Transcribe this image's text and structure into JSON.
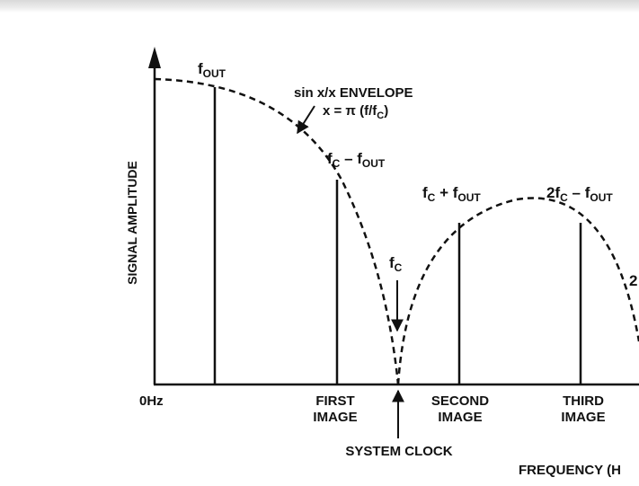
{
  "diagram": {
    "y_axis_label": "SIGNAL AMPLITUDE",
    "x_axis_label": "FREQUENCY (H",
    "origin_label": "0Hz",
    "envelope_label_line1": "sin x/x ENVELOPE",
    "envelope_label_line2": "x = π (f/f",
    "envelope_label_line2_sub": "C",
    "envelope_label_line2_end": ")",
    "fout": {
      "main": "f",
      "sub": "OUT"
    },
    "fc_minus_fout": {
      "a": "f",
      "a_sub": "C",
      "op": " – f",
      "b_sub": "OUT"
    },
    "fc_plus_fout": {
      "a": "f",
      "a_sub": "C",
      "op": " + f",
      "b_sub": "OUT"
    },
    "two_fc_minus_fout": {
      "a": "2f",
      "a_sub": "C",
      "op": " – f",
      "b_sub": "OUT"
    },
    "fc": {
      "main": "f",
      "sub": "C"
    },
    "cut_label": "2",
    "first_image": {
      "line1": "FIRST",
      "line2": "IMAGE"
    },
    "second_image": {
      "line1": "SECOND",
      "line2": "IMAGE"
    },
    "third_image": {
      "line1": "THIRD",
      "line2": "IMAGE"
    },
    "system_clock": "SYSTEM CLOCK"
  },
  "colors": {
    "ink": "#111111",
    "background": "#ffffff"
  }
}
